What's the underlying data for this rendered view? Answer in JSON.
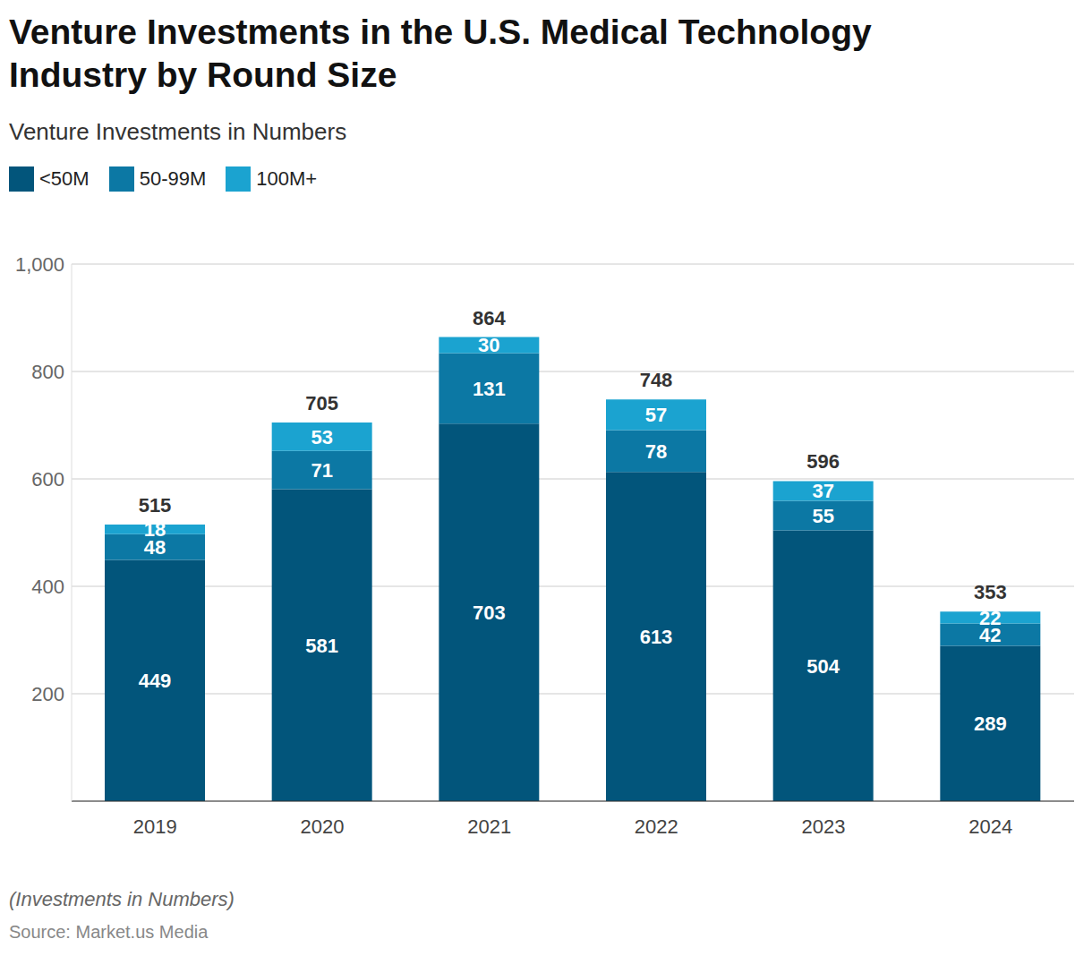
{
  "chart_data": {
    "type": "bar",
    "title": "Venture Investments in the U.S. Medical Technology Industry by Round Size",
    "subtitle": "Venture Investments in Numbers",
    "note": "(Investments in Numbers)",
    "source": "Source: Market.us Media",
    "categories": [
      "2019",
      "2020",
      "2021",
      "2022",
      "2023",
      "2024"
    ],
    "series": [
      {
        "name": "<50M",
        "color": "#02557b",
        "values": [
          449,
          581,
          703,
          613,
          504,
          289
        ]
      },
      {
        "name": "50-99M",
        "color": "#0c78a4",
        "values": [
          48,
          71,
          131,
          78,
          55,
          42
        ]
      },
      {
        "name": "100M+",
        "color": "#1ba3d0",
        "values": [
          18,
          53,
          30,
          57,
          37,
          22
        ]
      }
    ],
    "totals": [
      515,
      705,
      864,
      748,
      596,
      353
    ],
    "ylim": [
      0,
      1000
    ],
    "yticks": [
      200,
      400,
      600,
      800,
      {
        "value": 1000,
        "label": "1,000"
      }
    ],
    "stacked": true,
    "data_labels": true,
    "grid": true,
    "legend": "top-left"
  }
}
